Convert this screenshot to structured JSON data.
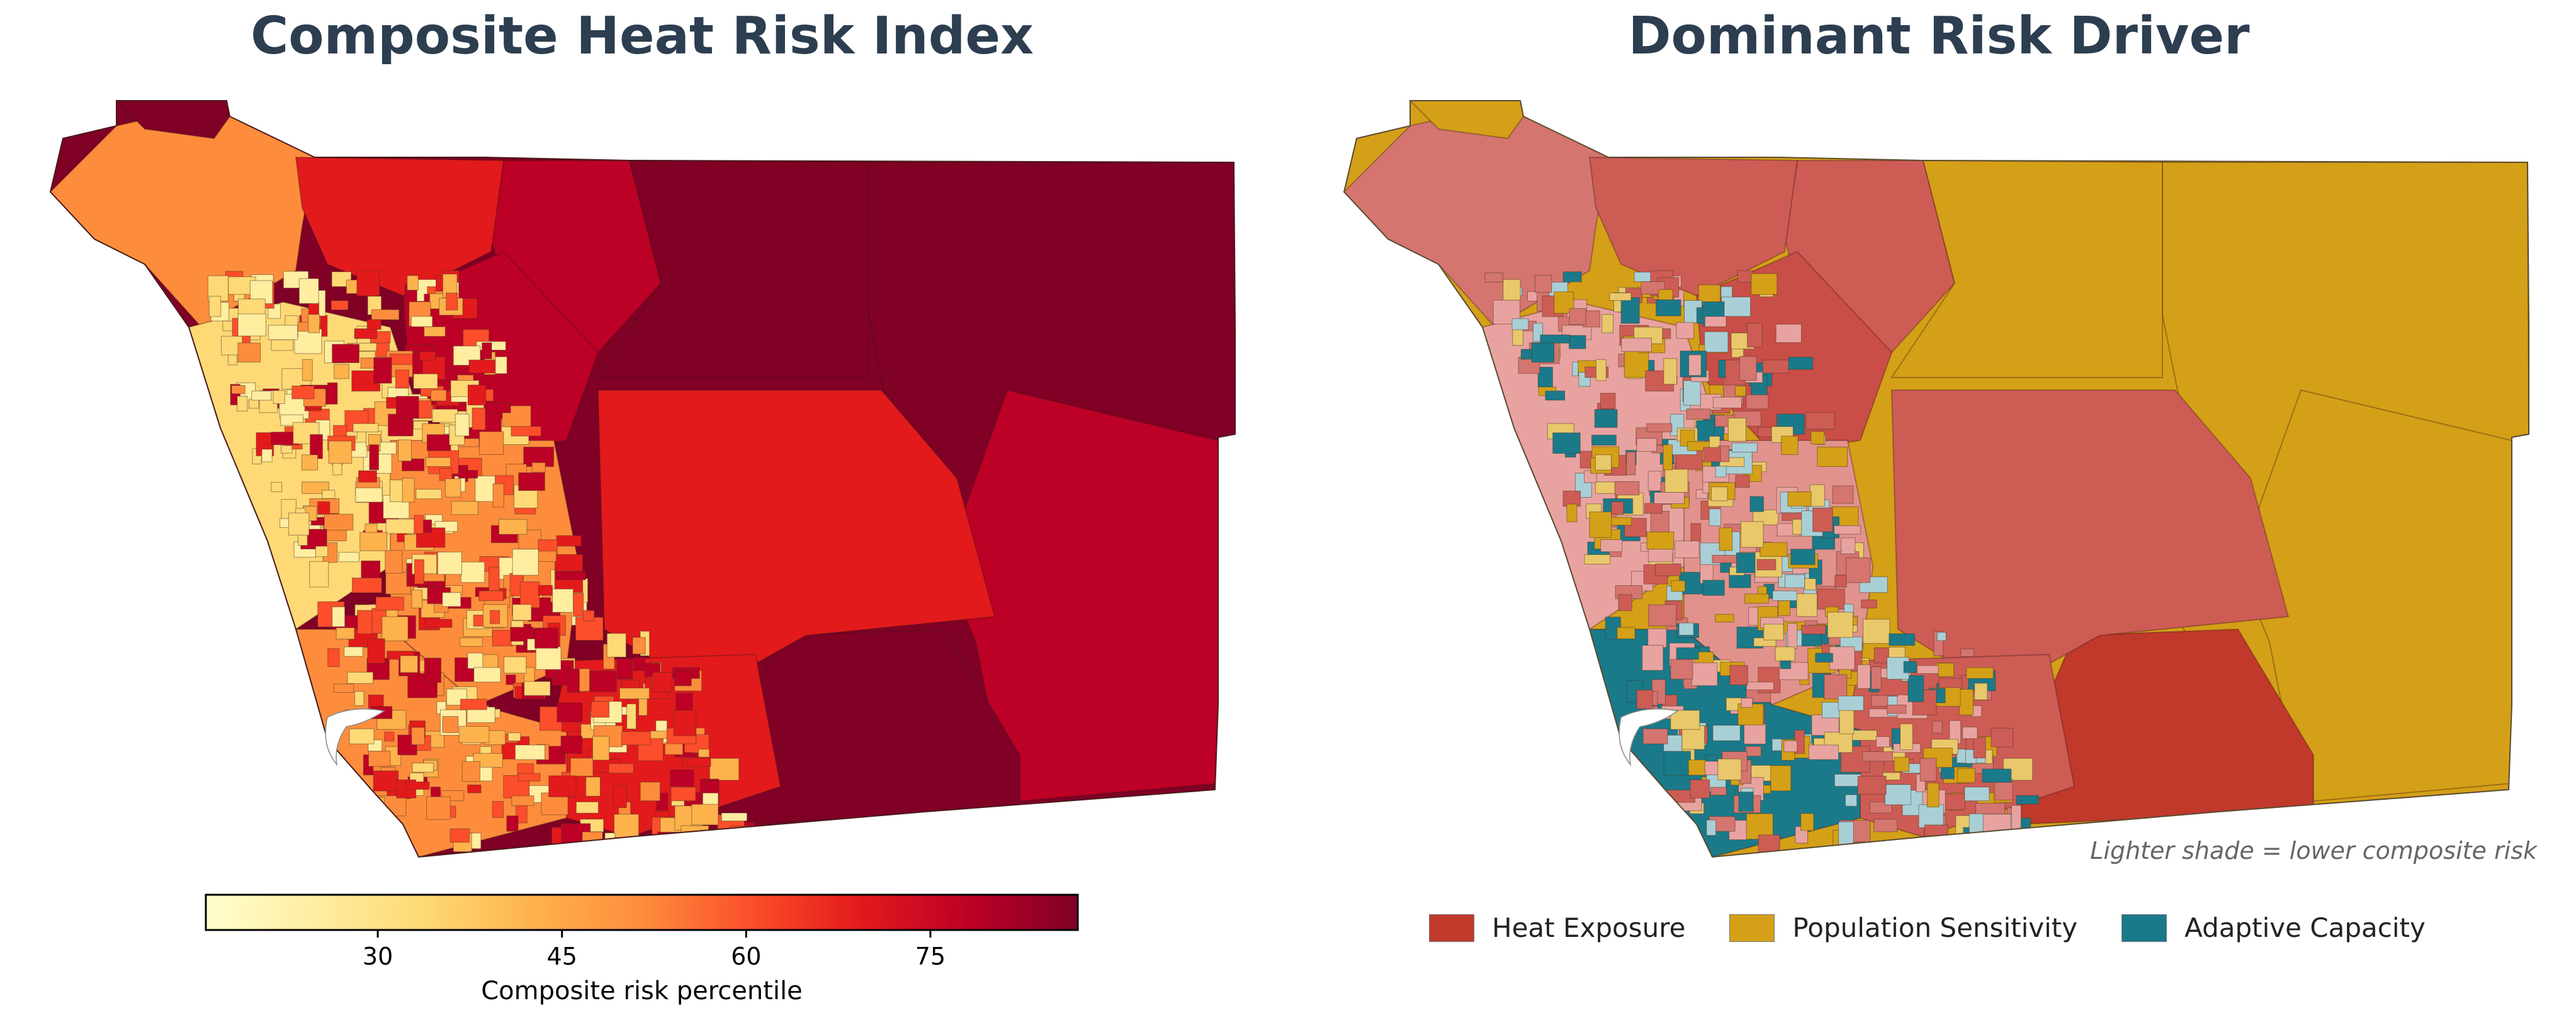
{
  "panels": {
    "left": {
      "title": "Composite Heat Risk Index"
    },
    "right": {
      "title": "Dominant Risk Driver"
    }
  },
  "colorbar": {
    "label": "Composite risk percentile",
    "ticks": [
      "30",
      "45",
      "60",
      "75"
    ],
    "tick_values": [
      30,
      45,
      60,
      75
    ],
    "range": [
      16,
      87
    ],
    "colormap": [
      "#ffffcc",
      "#ffeda0",
      "#fed976",
      "#feb24c",
      "#fd8d3c",
      "#fc4e2a",
      "#e31a1c",
      "#bd0026",
      "#800026"
    ]
  },
  "legend": {
    "items": [
      {
        "label": "Heat Exposure",
        "color": "#c0392b"
      },
      {
        "label": "Population Sensitivity",
        "color": "#d4a017"
      },
      {
        "label": "Adaptive Capacity",
        "color": "#1a7a8a"
      }
    ]
  },
  "note": "Lighter shade = lower composite risk",
  "colors": {
    "title": "#2c3e50",
    "heat_exposure": "#c0392b",
    "heat_exposure_light": "#e8a3a0",
    "population_sensitivity": "#d4a017",
    "population_sensitivity_light": "#e8c86a",
    "adaptive_capacity": "#1a7a8a",
    "adaptive_capacity_light": "#a9cfd6",
    "risk_max": "#800026",
    "risk_high": "#bd0026",
    "risk_mid": "#e31a1c",
    "risk_midlow": "#fd8d3c",
    "risk_low": "#fed976",
    "risk_min": "#ffeda0"
  }
}
